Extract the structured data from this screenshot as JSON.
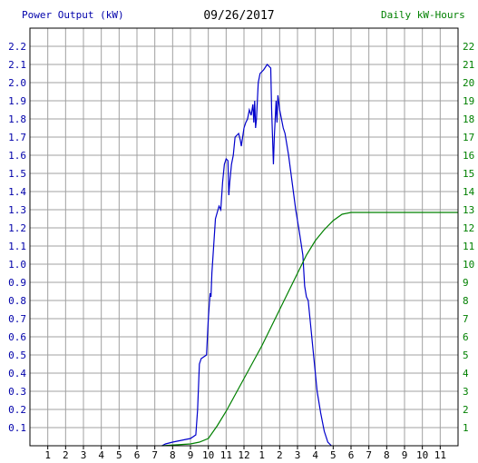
{
  "chart_data": {
    "type": "line",
    "title": "09/26/2017",
    "left_axis": {
      "label": "Power Output (kW)",
      "ylim": [
        0,
        2.3
      ],
      "ticks": [
        "0.1",
        "0.2",
        "0.3",
        "0.4",
        "0.5",
        "0.6",
        "0.7",
        "0.8",
        "0.9",
        "1.0",
        "1.1",
        "1.2",
        "1.3",
        "1.4",
        "1.5",
        "1.6",
        "1.7",
        "1.8",
        "1.9",
        "2.0",
        "2.1",
        "2.2"
      ],
      "color": "#0000aa"
    },
    "right_axis": {
      "label": "Daily kW-Hours",
      "ylim": [
        0,
        23
      ],
      "ticks": [
        "1",
        "2",
        "3",
        "4",
        "5",
        "6",
        "7",
        "8",
        "9",
        "10",
        "11",
        "12",
        "13",
        "14",
        "15",
        "16",
        "17",
        "18",
        "19",
        "20",
        "21",
        "22"
      ],
      "color": "#008000"
    },
    "x_axis": {
      "xlim": [
        0,
        24
      ],
      "tick_labels": [
        "1",
        "2",
        "3",
        "4",
        "5",
        "6",
        "7",
        "8",
        "9",
        "10",
        "11",
        "12",
        "1",
        "2",
        "3",
        "4",
        "5",
        "6",
        "7",
        "8",
        "9",
        "10",
        "11"
      ]
    },
    "grid": true,
    "series": [
      {
        "axis": "left",
        "color": "#0000cc",
        "points": [
          [
            7.4,
            0
          ],
          [
            7.6,
            0.01
          ],
          [
            8.0,
            0.02
          ],
          [
            8.5,
            0.03
          ],
          [
            9.0,
            0.04
          ],
          [
            9.3,
            0.06
          ],
          [
            9.4,
            0.2
          ],
          [
            9.5,
            0.45
          ],
          [
            9.6,
            0.48
          ],
          [
            9.9,
            0.5
          ],
          [
            10.0,
            0.7
          ],
          [
            10.1,
            0.84
          ],
          [
            10.15,
            0.82
          ],
          [
            10.2,
            0.95
          ],
          [
            10.3,
            1.1
          ],
          [
            10.4,
            1.25
          ],
          [
            10.6,
            1.32
          ],
          [
            10.7,
            1.3
          ],
          [
            10.8,
            1.45
          ],
          [
            10.9,
            1.55
          ],
          [
            11.0,
            1.58
          ],
          [
            11.1,
            1.57
          ],
          [
            11.15,
            1.38
          ],
          [
            11.2,
            1.45
          ],
          [
            11.3,
            1.55
          ],
          [
            11.4,
            1.6
          ],
          [
            11.5,
            1.7
          ],
          [
            11.7,
            1.72
          ],
          [
            11.8,
            1.68
          ],
          [
            11.85,
            1.65
          ],
          [
            12.0,
            1.75
          ],
          [
            12.1,
            1.78
          ],
          [
            12.2,
            1.8
          ],
          [
            12.3,
            1.85
          ],
          [
            12.4,
            1.82
          ],
          [
            12.5,
            1.88
          ],
          [
            12.55,
            1.78
          ],
          [
            12.6,
            1.9
          ],
          [
            12.65,
            1.75
          ],
          [
            12.7,
            1.8
          ],
          [
            12.8,
            2.0
          ],
          [
            12.9,
            2.05
          ],
          [
            13.1,
            2.07
          ],
          [
            13.3,
            2.1
          ],
          [
            13.5,
            2.08
          ],
          [
            13.55,
            1.85
          ],
          [
            13.65,
            1.55
          ],
          [
            13.7,
            1.7
          ],
          [
            13.8,
            1.9
          ],
          [
            13.85,
            1.78
          ],
          [
            13.9,
            1.93
          ],
          [
            14.0,
            1.85
          ],
          [
            14.1,
            1.8
          ],
          [
            14.2,
            1.75
          ],
          [
            14.3,
            1.72
          ],
          [
            14.5,
            1.6
          ],
          [
            14.7,
            1.45
          ],
          [
            14.9,
            1.3
          ],
          [
            15.1,
            1.18
          ],
          [
            15.3,
            1.05
          ],
          [
            15.4,
            0.88
          ],
          [
            15.5,
            0.82
          ],
          [
            15.6,
            0.8
          ],
          [
            15.7,
            0.7
          ],
          [
            15.9,
            0.5
          ],
          [
            16.1,
            0.3
          ],
          [
            16.3,
            0.18
          ],
          [
            16.5,
            0.08
          ],
          [
            16.7,
            0.02
          ],
          [
            16.9,
            0
          ]
        ]
      },
      {
        "axis": "right",
        "color": "#008000",
        "points": [
          [
            7.4,
            0
          ],
          [
            9.0,
            0.1
          ],
          [
            9.5,
            0.2
          ],
          [
            10.0,
            0.4
          ],
          [
            10.5,
            1.1
          ],
          [
            11.0,
            1.9
          ],
          [
            11.5,
            2.8
          ],
          [
            12.0,
            3.7
          ],
          [
            12.5,
            4.6
          ],
          [
            13.0,
            5.5
          ],
          [
            13.5,
            6.5
          ],
          [
            14.0,
            7.5
          ],
          [
            14.5,
            8.5
          ],
          [
            15.0,
            9.5
          ],
          [
            15.5,
            10.5
          ],
          [
            16.0,
            11.3
          ],
          [
            16.5,
            11.9
          ],
          [
            17.0,
            12.4
          ],
          [
            17.5,
            12.75
          ],
          [
            18.0,
            12.85
          ],
          [
            18.5,
            12.85
          ],
          [
            24.0,
            12.85
          ]
        ]
      }
    ]
  }
}
